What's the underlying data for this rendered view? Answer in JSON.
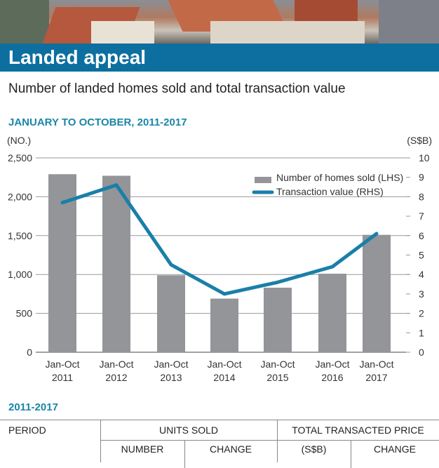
{
  "header": {
    "title": "Landed appeal",
    "subtitle": "Number of landed homes sold and total transaction value"
  },
  "chart_data": {
    "type": "bar+line",
    "title": "JANUARY TO OCTOBER, 2011-2017",
    "categories": [
      "Jan-Oct 2011",
      "Jan-Oct 2012",
      "Jan-Oct 2013",
      "Jan-Oct 2014",
      "Jan-Oct 2015",
      "Jan-Oct 2016",
      "Jan-Oct 2017"
    ],
    "category_lines": [
      [
        "Jan-Oct",
        "2011"
      ],
      [
        "Jan-Oct",
        "2012"
      ],
      [
        "Jan-Oct",
        "2013"
      ],
      [
        "Jan-Oct",
        "2014"
      ],
      [
        "Jan-Oct",
        "2015"
      ],
      [
        "Jan-Oct",
        "2016"
      ],
      [
        "Jan-Oct",
        "2017"
      ]
    ],
    "left_axis": {
      "label": "(NO.)",
      "ylim": [
        0,
        2500
      ],
      "ticks": [
        "0",
        "500",
        "1,000",
        "1,500",
        "2,000",
        "2,500"
      ]
    },
    "right_axis": {
      "label": "(S$B)",
      "ylim": [
        0,
        10
      ],
      "ticks": [
        "0",
        "1",
        "2",
        "3",
        "4",
        "5",
        "6",
        "7",
        "8",
        "9",
        "10"
      ]
    },
    "series": [
      {
        "name": "Number of homes sold (LHS)",
        "type": "bar",
        "axis": "left",
        "color": "#939598",
        "values": [
          2290,
          2270,
          990,
          690,
          830,
          1010,
          1510
        ]
      },
      {
        "name": "Transaction value (RHS)",
        "type": "line",
        "axis": "right",
        "color": "#1a7fa8",
        "values": [
          7.7,
          8.6,
          4.5,
          3.0,
          3.6,
          4.4,
          6.1
        ]
      }
    ],
    "grid": true,
    "legend": "top-right"
  },
  "table": {
    "title": "2011-2017",
    "headers": [
      "PERIOD",
      "UNITS SOLD",
      "TOTAL TRANSACTED PRICE"
    ],
    "subheaders": [
      "NUMBER",
      "CHANGE",
      "(S$B)",
      "CHANGE"
    ]
  }
}
